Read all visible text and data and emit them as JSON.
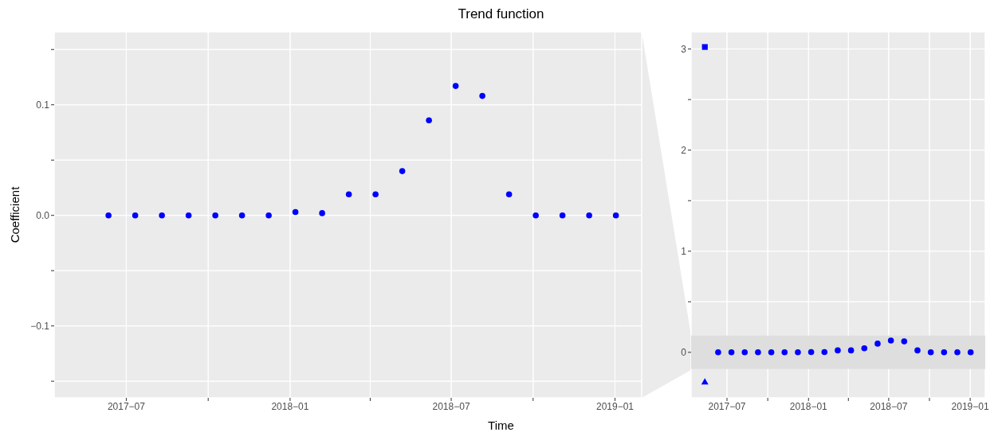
{
  "chart_data": [
    {
      "type": "scatter",
      "title": "Trend function",
      "xlabel": "Time",
      "ylabel": "Coefficient",
      "marker": "circle",
      "grid": true,
      "x": [
        "2017-06-11",
        "2017-07-11",
        "2017-08-10",
        "2017-09-09",
        "2017-10-09",
        "2017-11-08",
        "2017-12-08",
        "2018-01-07",
        "2018-02-06",
        "2018-03-08",
        "2018-04-07",
        "2018-05-07",
        "2018-06-06",
        "2018-07-06",
        "2018-08-05",
        "2018-09-04",
        "2018-10-04",
        "2018-11-03",
        "2018-12-03",
        "2019-01-02"
      ],
      "series": [
        {
          "color": "#0000ff",
          "values": [
            0,
            0,
            0,
            0,
            0,
            0,
            0,
            0.003,
            0.002,
            0.019,
            0.019,
            0.04,
            0.086,
            0.117,
            0.108,
            0.019,
            0,
            0,
            0,
            0
          ]
        }
      ],
      "xlim": [
        "2017-04-11",
        "2019-01-31"
      ],
      "xticks": [
        {
          "value": "2017-07",
          "label": "2017−07"
        },
        {
          "value": "2017-10",
          "label": null
        },
        {
          "value": "2018-01",
          "label": "2018−01"
        },
        {
          "value": "2018-04",
          "label": null
        },
        {
          "value": "2018-07",
          "label": "2018−07"
        },
        {
          "value": "2018-10",
          "label": null
        },
        {
          "value": "2019-01",
          "label": "2019−01"
        }
      ],
      "ylim": [
        -0.165,
        0.166
      ],
      "yticks": [
        {
          "value": -0.15,
          "label": null
        },
        {
          "value": -0.1,
          "label": "−0.1"
        },
        {
          "value": -0.05,
          "label": null
        },
        {
          "value": 0,
          "label": "0.0"
        },
        {
          "value": 0.05,
          "label": null
        },
        {
          "value": 0.1,
          "label": "0.1"
        },
        {
          "value": 0.15,
          "label": null
        }
      ]
    },
    {
      "type": "scatter",
      "marker": "circle",
      "grid": true,
      "x": [
        "2017-06-11",
        "2017-07-11",
        "2017-08-10",
        "2017-09-09",
        "2017-10-09",
        "2017-11-08",
        "2017-12-08",
        "2018-01-07",
        "2018-02-06",
        "2018-03-08",
        "2018-04-07",
        "2018-05-07",
        "2018-06-06",
        "2018-07-06",
        "2018-08-05",
        "2018-09-04",
        "2018-10-04",
        "2018-11-03",
        "2018-12-03",
        "2019-01-02"
      ],
      "series": [
        {
          "color": "#0000ff",
          "values": [
            0,
            0,
            0,
            0,
            0,
            0,
            0,
            0.003,
            0.002,
            0.019,
            0.019,
            0.04,
            0.086,
            0.117,
            0.108,
            0.019,
            0,
            0,
            0,
            0
          ]
        },
        {
          "color": "#0000ff",
          "marker": "square",
          "x": [
            "2017-05-12"
          ],
          "values": [
            3.02
          ]
        },
        {
          "color": "#0000ff",
          "marker": "triangle",
          "x": [
            "2017-05-12"
          ],
          "values": [
            -0.29
          ]
        }
      ],
      "bands": [
        {
          "axis": "y",
          "from": -0.165,
          "to": 0.166,
          "color": "#dedede"
        }
      ],
      "xlim": [
        "2017-04-11",
        "2019-02-04"
      ],
      "xticks": [
        {
          "value": "2017-07",
          "label": "2017−07"
        },
        {
          "value": "2017-10",
          "label": null
        },
        {
          "value": "2018-01",
          "label": "2018−01"
        },
        {
          "value": "2018-04",
          "label": null
        },
        {
          "value": "2018-07",
          "label": "2018−07"
        },
        {
          "value": "2018-10",
          "label": null
        },
        {
          "value": "2019-01",
          "label": "2019−01"
        }
      ],
      "ylim": [
        -0.45,
        3.17
      ],
      "yticks": [
        {
          "value": 0,
          "label": "0"
        },
        {
          "value": 0.5,
          "label": null
        },
        {
          "value": 1,
          "label": "1"
        },
        {
          "value": 1.5,
          "label": null
        },
        {
          "value": 2,
          "label": "2"
        },
        {
          "value": 2.5,
          "label": null
        },
        {
          "value": 3,
          "label": "3"
        }
      ]
    }
  ]
}
